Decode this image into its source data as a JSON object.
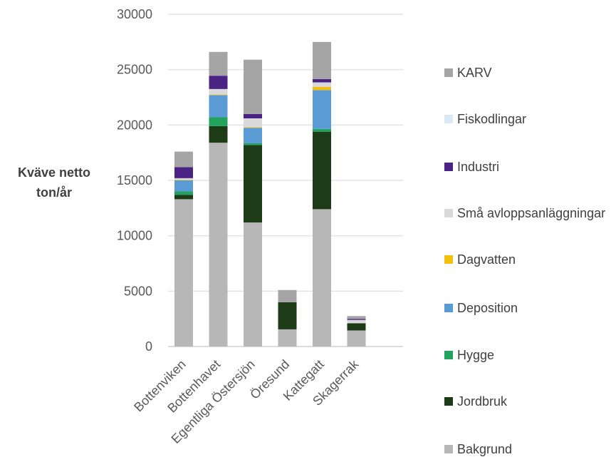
{
  "chart_data": {
    "type": "bar",
    "stacked": true,
    "ylabel_lines": [
      "Kväve netto",
      "ton/år"
    ],
    "xlabel": "",
    "ylim": [
      0,
      30000
    ],
    "yticks": [
      0,
      5000,
      10000,
      15000,
      20000,
      25000,
      30000
    ],
    "grid": true,
    "legend_position": "right",
    "categories": [
      "Bottenviken",
      "Bottenhavet",
      "Egentliga Östersjön",
      "Öresund",
      "Kattegatt",
      "Skagerrak"
    ],
    "series": [
      {
        "name": "Bakgrund",
        "color": "#b7b7b7",
        "values": [
          13300,
          18400,
          11200,
          1550,
          12400,
          1450
        ]
      },
      {
        "name": "Jordbruk",
        "color": "#1e3b17",
        "values": [
          400,
          1500,
          7000,
          2450,
          7000,
          650
        ]
      },
      {
        "name": "Hygge",
        "color": "#21a35d",
        "values": [
          300,
          800,
          150,
          0,
          250,
          0
        ]
      },
      {
        "name": "Deposition",
        "color": "#5b9bd5",
        "values": [
          1000,
          2000,
          1400,
          0,
          3500,
          0
        ]
      },
      {
        "name": "Dagvatten",
        "color": "#f2c00e",
        "values": [
          50,
          50,
          50,
          0,
          300,
          0
        ]
      },
      {
        "name": "Små avloppsanläggningar",
        "color": "#d9d9d9",
        "values": [
          150,
          500,
          800,
          0,
          400,
          300
        ]
      },
      {
        "name": "Industri",
        "color": "#4b2384",
        "values": [
          1000,
          1200,
          400,
          0,
          300,
          100
        ]
      },
      {
        "name": "Fiskodlingar",
        "color": "#dbe8f5",
        "values": [
          0,
          0,
          0,
          0,
          0,
          0
        ]
      },
      {
        "name": "KARV",
        "color": "#a5a5a5",
        "values": [
          1400,
          2150,
          4900,
          1100,
          3350,
          250
        ]
      }
    ]
  },
  "legend": {
    "items": [
      {
        "label": "KARV",
        "color": "#a5a5a5"
      },
      {
        "label": "Fiskodlingar",
        "color": "#dbe8f5"
      },
      {
        "label": "Industri",
        "color": "#4b2384"
      },
      {
        "label": "Små avloppsanläggningar",
        "color": "#d9d9d9"
      },
      {
        "label": "Dagvatten",
        "color": "#f2c00e"
      },
      {
        "label": "Deposition",
        "color": "#5b9bd5"
      },
      {
        "label": "Hygge",
        "color": "#21a35d"
      },
      {
        "label": "Jordbruk",
        "color": "#1e3b17"
      },
      {
        "label": "Bakgrund",
        "color": "#b7b7b7"
      }
    ]
  }
}
